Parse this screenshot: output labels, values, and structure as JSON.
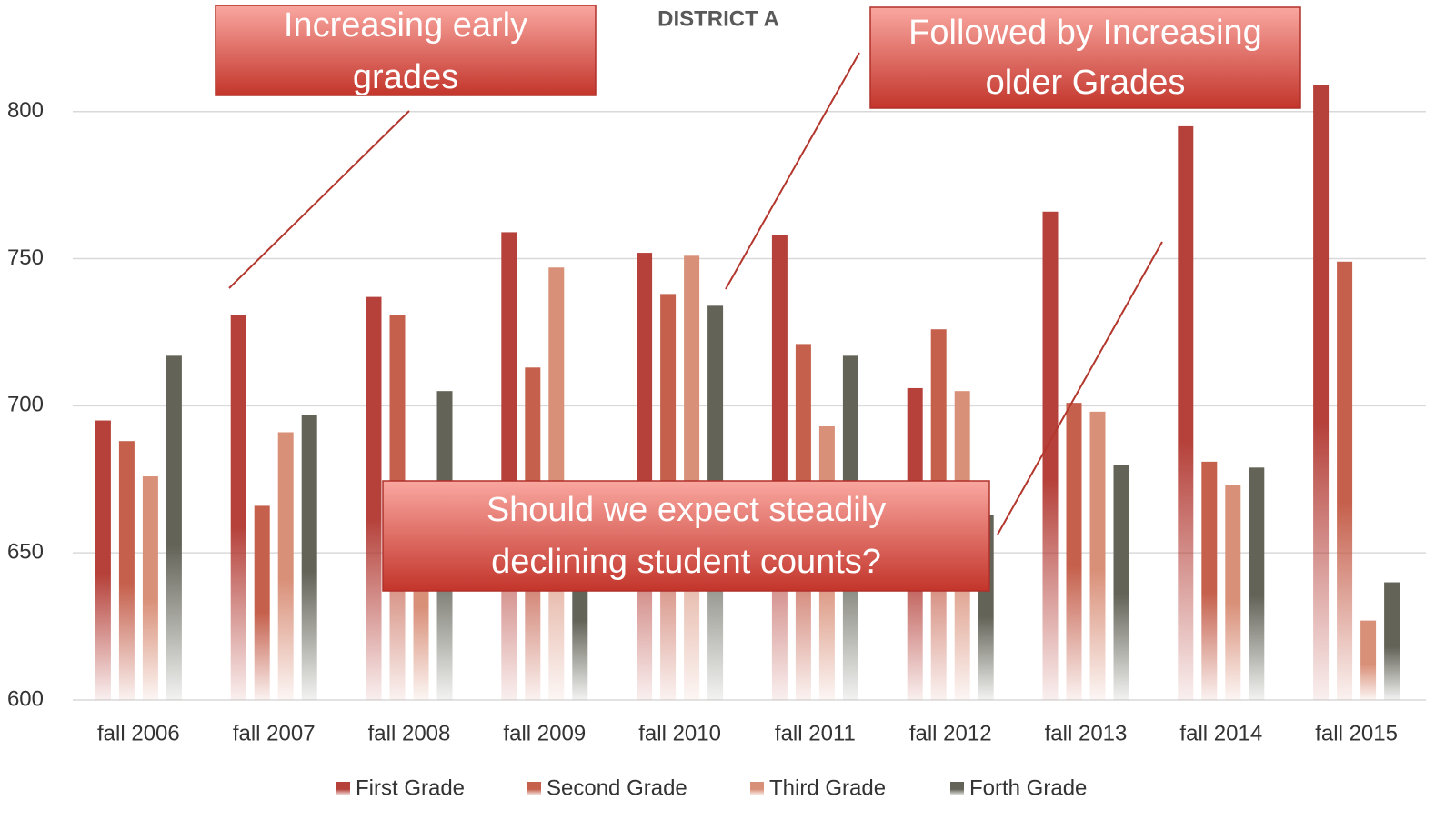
{
  "chart_data": {
    "type": "bar",
    "title": "DISTRICT A",
    "categories": [
      "fall 2006",
      "fall 2007",
      "fall 2008",
      "fall 2009",
      "fall 2010",
      "fall 2011",
      "fall 2012",
      "fall 2013",
      "fall 2014",
      "fall 2015"
    ],
    "series": [
      {
        "name": "First Grade",
        "color": "#b5413a",
        "values": [
          695,
          731,
          737,
          759,
          752,
          758,
          706,
          766,
          795,
          809
        ]
      },
      {
        "name": "Second Grade",
        "color": "#c5604c",
        "values": [
          688,
          666,
          731,
          713,
          738,
          721,
          726,
          701,
          681,
          749
        ]
      },
      {
        "name": "Third Grade",
        "color": "#d99079",
        "values": [
          676,
          691,
          670,
          747,
          751,
          693,
          705,
          698,
          673,
          627
        ]
      },
      {
        "name": "Forth Grade",
        "color": "#636358",
        "values": [
          717,
          697,
          705,
          660,
          734,
          717,
          663,
          680,
          679,
          640
        ]
      }
    ],
    "ylim": [
      600,
      820
    ],
    "yticks": [
      600,
      650,
      700,
      750,
      800
    ],
    "grid": true,
    "legend": "bottom",
    "annotations": [
      {
        "lines": [
          "Increasing early",
          "grades"
        ]
      },
      {
        "lines": [
          "Followed by Increasing",
          "older Grades"
        ]
      },
      {
        "lines": [
          "Should we expect steadily",
          "declining student counts?"
        ]
      }
    ]
  }
}
